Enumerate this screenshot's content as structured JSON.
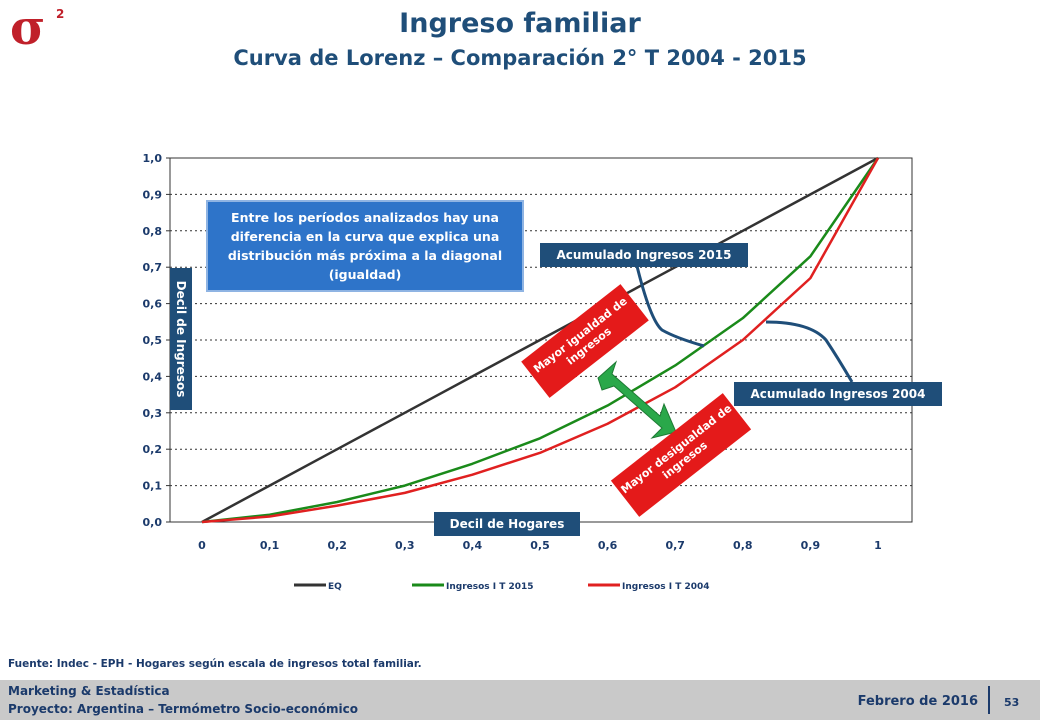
{
  "header": {
    "title": "Ingreso familiar",
    "subtitle": "Curva de Lorenz – Comparación 2° T 2004 - 2015",
    "logo_symbol": "σ",
    "logo_superscript": "2"
  },
  "annotations": {
    "note": "Entre los períodos analizados hay una diferencia en la curva que explica una distribución más próxima a la diagonal (igualdad)",
    "y_axis_box": "Decil de Ingresos",
    "x_axis_box": "Decil de Hogares",
    "label_2015": "Acumulado Ingresos 2015",
    "label_2004": "Acumulado Ingresos 2004",
    "more_equality": "Mayor igualdad de ingresos",
    "more_inequality": "Mayor desigualdad de ingresos"
  },
  "chart_data": {
    "type": "line",
    "x": [
      0,
      0.1,
      0.2,
      0.3,
      0.4,
      0.5,
      0.6,
      0.7,
      0.8,
      0.9,
      1
    ],
    "x_tick_labels": [
      "0",
      "0,1",
      "0,2",
      "0,3",
      "0,4",
      "0,5",
      "0,6",
      "0,7",
      "0,8",
      "0,9",
      "1"
    ],
    "y_tick_labels": [
      "0,0",
      "0,1",
      "0,2",
      "0,3",
      "0,4",
      "0,5",
      "0,6",
      "0,7",
      "0,8",
      "0,9",
      "1,0"
    ],
    "ylim": [
      0,
      1
    ],
    "xlim": [
      0,
      1
    ],
    "grid": true,
    "legend_position": "bottom",
    "series": [
      {
        "name": "EQ",
        "color": "#333333",
        "values": [
          0,
          0.1,
          0.2,
          0.3,
          0.4,
          0.5,
          0.6,
          0.7,
          0.8,
          0.9,
          1.0
        ]
      },
      {
        "name": "Ingresos I T 2015",
        "color": "#1a8a1a",
        "values": [
          0,
          0.02,
          0.055,
          0.1,
          0.16,
          0.23,
          0.32,
          0.43,
          0.56,
          0.73,
          1.0
        ]
      },
      {
        "name": "Ingresos I T 2004",
        "color": "#e02020",
        "values": [
          0,
          0.015,
          0.045,
          0.08,
          0.13,
          0.19,
          0.27,
          0.37,
          0.5,
          0.67,
          1.0
        ]
      }
    ]
  },
  "footer": {
    "source": "Fuente: Indec - EPH - Hogares según escala de ingresos total familiar.",
    "company": "Marketing & Estadística",
    "project": "Proyecto: Argentina – Termómetro Socio-económico",
    "date": "Febrero de 2016",
    "page": "53"
  }
}
